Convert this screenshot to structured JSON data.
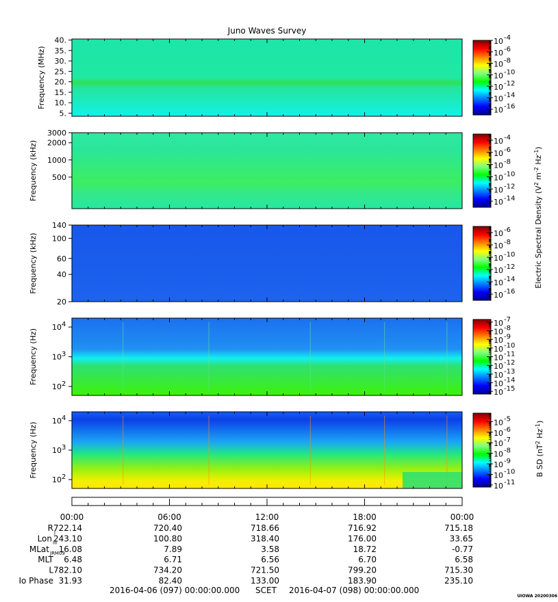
{
  "chart_data": {
    "type": "heatmap",
    "title": "Juno Waves Survey",
    "x_tick_labels": [
      "00:00",
      "06:00",
      "12:00",
      "18:00",
      "00:00"
    ],
    "panels": [
      {
        "ylabel": "Frequency (MHz)",
        "scale": "linear",
        "ylim": [
          3.5,
          40.5
        ],
        "y_ticks": [
          {
            "v": 40,
            "label": "40."
          },
          {
            "v": 35,
            "label": "35."
          },
          {
            "v": 30,
            "label": "30."
          },
          {
            "v": 25,
            "label": "25."
          },
          {
            "v": 20,
            "label": "20."
          },
          {
            "v": 15,
            "label": "15."
          },
          {
            "v": 10,
            "label": "10."
          },
          {
            "v": 5,
            "label": "5."
          }
        ],
        "colorbar_exponents": [
          "-4",
          "-6",
          "-8",
          "-10",
          "-12",
          "-14",
          "-16"
        ],
        "colorbar_range": [
          -17,
          -4
        ]
      },
      {
        "ylabel": "Frequency (kHz)",
        "scale": "log",
        "ylim": [
          140,
          3000
        ],
        "y_ticks": [
          {
            "v": 3000,
            "label": "3000"
          },
          {
            "v": 2000,
            "label": "2000"
          },
          {
            "v": 1000,
            "label": "1000"
          },
          {
            "v": 500,
            "label": "500"
          }
        ],
        "colorbar_exponents": [
          "-4",
          "-6",
          "-8",
          "-10",
          "-12",
          "-14"
        ],
        "colorbar_range": [
          -15,
          -3
        ],
        "colorbar_label_parts": [
          "Electric Spectral Density (V",
          "2",
          " m",
          "-2",
          " Hz",
          "-1",
          ")"
        ]
      },
      {
        "ylabel": "Frequency (kHz)",
        "scale": "log",
        "ylim": [
          20,
          140
        ],
        "y_ticks": [
          {
            "v": 140,
            "label": "140"
          },
          {
            "v": 100,
            "label": "100"
          },
          {
            "v": 60,
            "label": "60"
          },
          {
            "v": 40,
            "label": "40"
          },
          {
            "v": 20,
            "label": "20"
          }
        ],
        "colorbar_exponents": [
          "-6",
          "-8",
          "-10",
          "-12",
          "-14",
          "-16"
        ],
        "colorbar_range": [
          -17,
          -5
        ]
      },
      {
        "ylabel": "Frequency (Hz)",
        "scale": "log",
        "ylim": [
          50,
          20000
        ],
        "y_ticks": [
          {
            "v": 10000,
            "label": "10",
            "exp": "4"
          },
          {
            "v": 1000,
            "label": "10",
            "exp": "3"
          },
          {
            "v": 100,
            "label": "10",
            "exp": "2"
          }
        ],
        "colorbar_exponents": [
          "-7",
          "-8",
          "-9",
          "-10",
          "-11",
          "-12",
          "-13",
          "-14",
          "-15"
        ],
        "colorbar_range": [
          -15.3,
          -6.7
        ]
      },
      {
        "ylabel": "Frequency (Hz)",
        "scale": "log",
        "ylim": [
          50,
          20000
        ],
        "y_ticks": [
          {
            "v": 10000,
            "label": "10",
            "exp": "4"
          },
          {
            "v": 1000,
            "label": "10",
            "exp": "3"
          },
          {
            "v": 100,
            "label": "10",
            "exp": "2"
          }
        ],
        "colorbar_exponents": [
          "-5",
          "-6",
          "-7",
          "-8",
          "-9",
          "-10",
          "-11"
        ],
        "colorbar_range": [
          -11.2,
          -4.2
        ],
        "colorbar_label_parts": [
          "B SD (nT",
          "2",
          " Hz",
          "-1",
          ")"
        ]
      }
    ],
    "ephemeris": {
      "rows": [
        {
          "label": "R",
          "sub": "J",
          "values": [
            "722.14",
            "720.40",
            "718.66",
            "716.92",
            "715.18"
          ]
        },
        {
          "label": "Lon",
          "sub": "III",
          "values": [
            "243.10",
            "100.80",
            "318.40",
            "176.00",
            "33.65"
          ]
        },
        {
          "label": "MLat",
          "sub": "JRM09",
          "values": [
            "16.08",
            "7.89",
            "3.58",
            "18.72",
            "-0.77"
          ]
        },
        {
          "label": "MLT",
          "sub": "",
          "values": [
            "6.48",
            "6.71",
            "6.56",
            "6.70",
            "6.58"
          ]
        },
        {
          "label": "L",
          "sub": "",
          "values": [
            "782.10",
            "734.20",
            "721.50",
            "799.20",
            "715.30"
          ]
        },
        {
          "label": "Io Phase",
          "sub": "",
          "values": [
            "31.93",
            "82.40",
            "133.00",
            "183.90",
            "235.10"
          ]
        }
      ]
    },
    "time_range": {
      "start": "2016-04-06 (097) 00:00:00.000",
      "frame": "SCET",
      "end": "2016-04-07 (098) 00:00:00.000"
    },
    "footer": "UIOWA 20200306"
  }
}
